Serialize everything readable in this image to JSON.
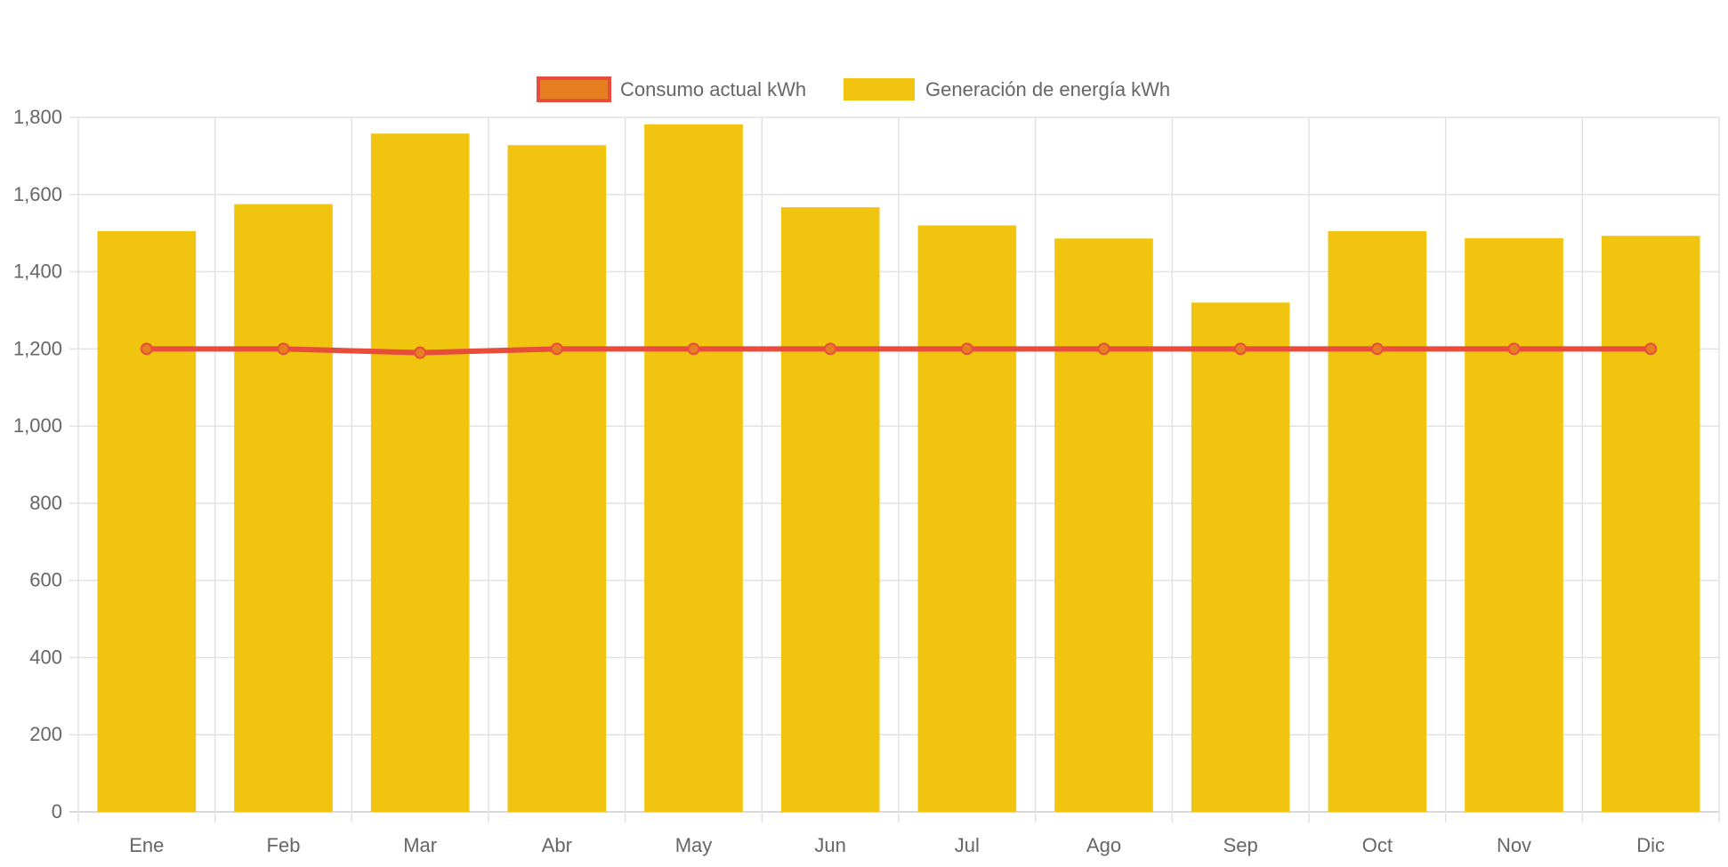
{
  "chart_data": {
    "type": "bar",
    "categories": [
      "Ene",
      "Feb",
      "Mar",
      "Abr",
      "May",
      "Jun",
      "Jul",
      "Ago",
      "Sep",
      "Oct",
      "Nov",
      "Dic"
    ],
    "series": [
      {
        "name": "Consumo actual kWh",
        "type": "line",
        "color": "#e74c3c",
        "fill": "#e67e22",
        "values": [
          1200,
          1200,
          1190,
          1200,
          1200,
          1200,
          1200,
          1200,
          1200,
          1200,
          1200,
          1200
        ]
      },
      {
        "name": "Generación de energía kWh",
        "type": "bar",
        "color": "#f1c40f",
        "values": [
          1505,
          1575,
          1758,
          1728,
          1782,
          1567,
          1520,
          1486,
          1320,
          1505,
          1487,
          1493
        ]
      }
    ],
    "ylim": [
      0,
      1800
    ],
    "yticks": [
      "0",
      "200",
      "400",
      "600",
      "800",
      "1,000",
      "1,200",
      "1,400",
      "1,600",
      "1,800"
    ],
    "grid": true,
    "legend": "top"
  }
}
